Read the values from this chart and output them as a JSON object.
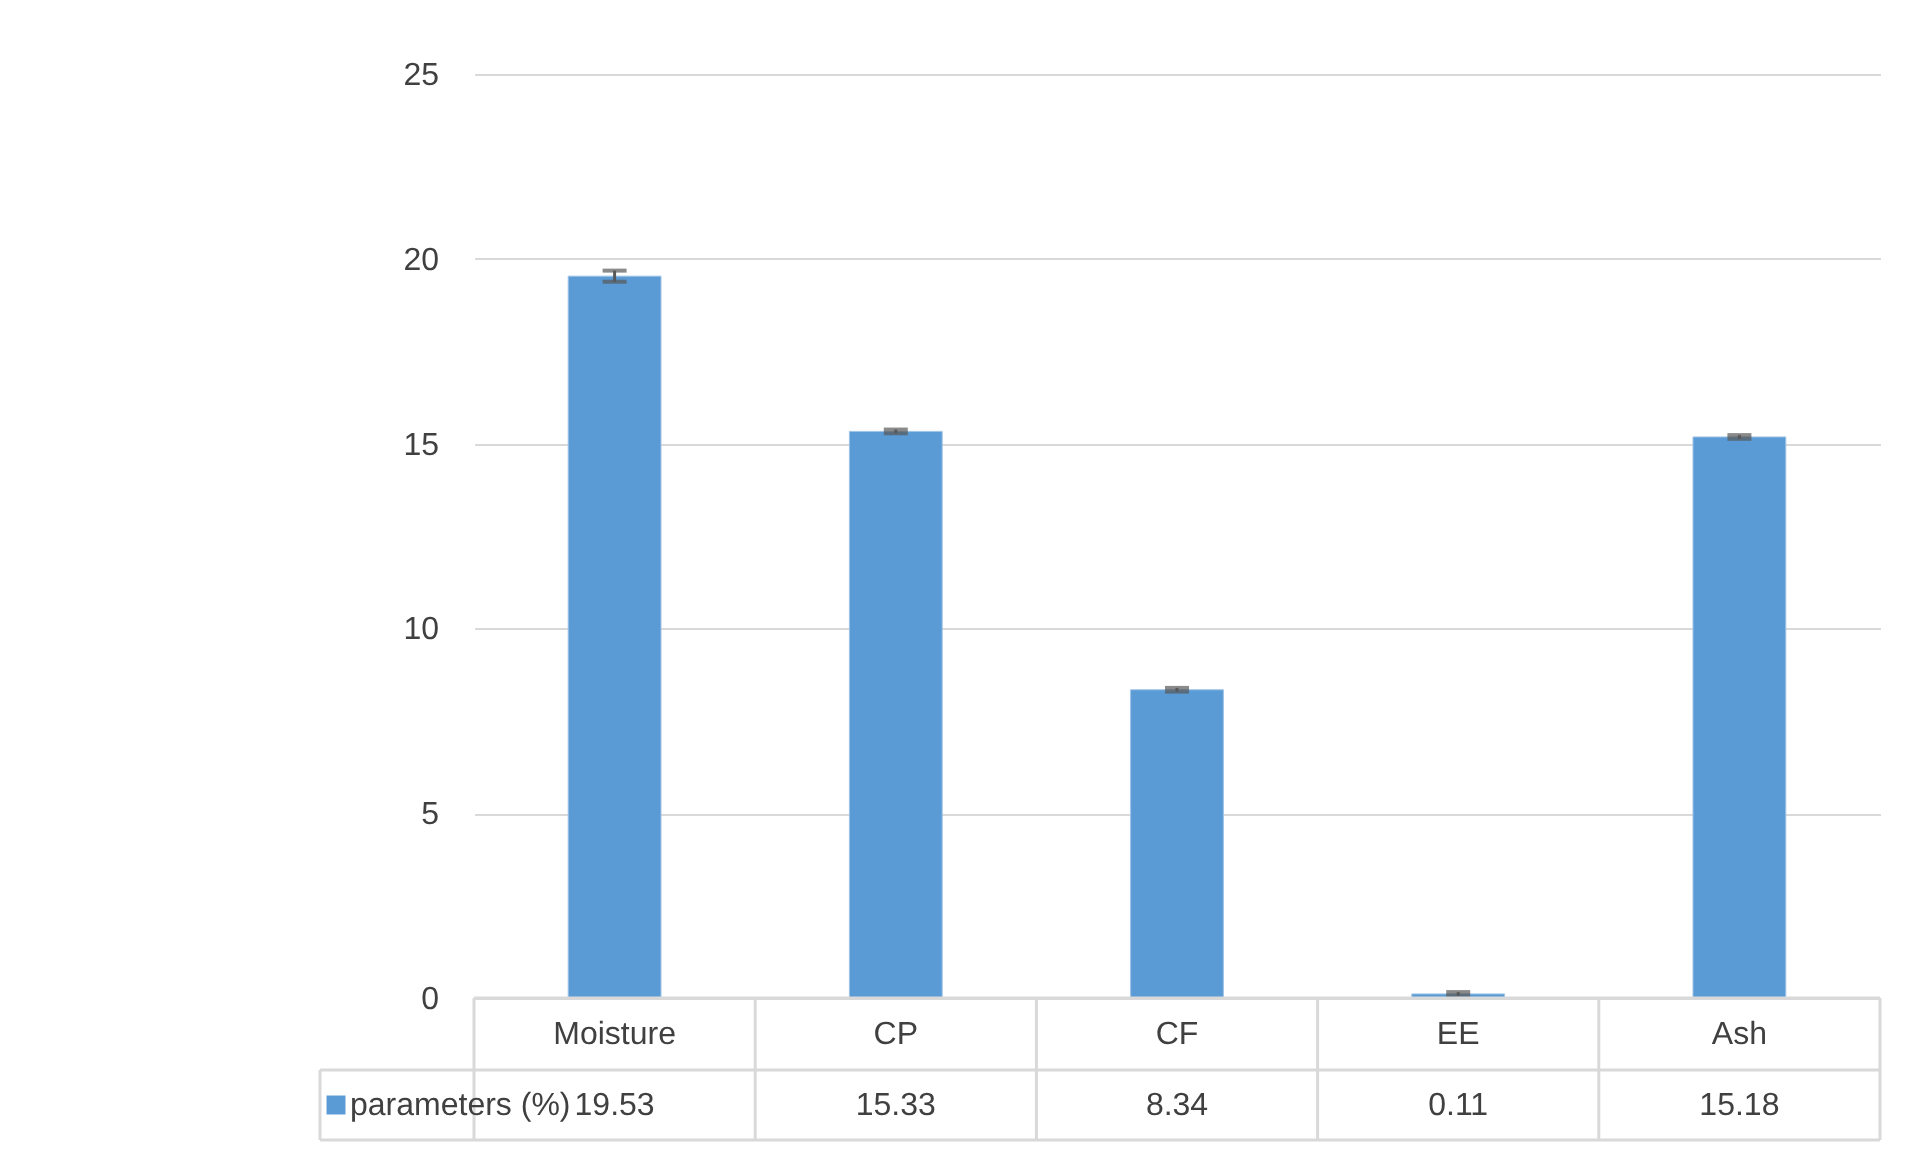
{
  "chart_data": {
    "type": "bar",
    "categories": [
      "Moisture",
      "CP",
      "CF",
      "EE",
      "Ash"
    ],
    "series": [
      {
        "name": "parameters (%)",
        "color": "#5b9bd5",
        "values": [
          19.53,
          15.33,
          8.34,
          0.11,
          15.18
        ],
        "errors": [
          0.15,
          0.05,
          0.05,
          0.05,
          0.05
        ]
      }
    ],
    "ylim": [
      0,
      25
    ],
    "yticks": [
      0,
      5,
      10,
      15,
      20,
      25
    ],
    "grid": "y",
    "legend": "bottom",
    "data_labels": true
  }
}
